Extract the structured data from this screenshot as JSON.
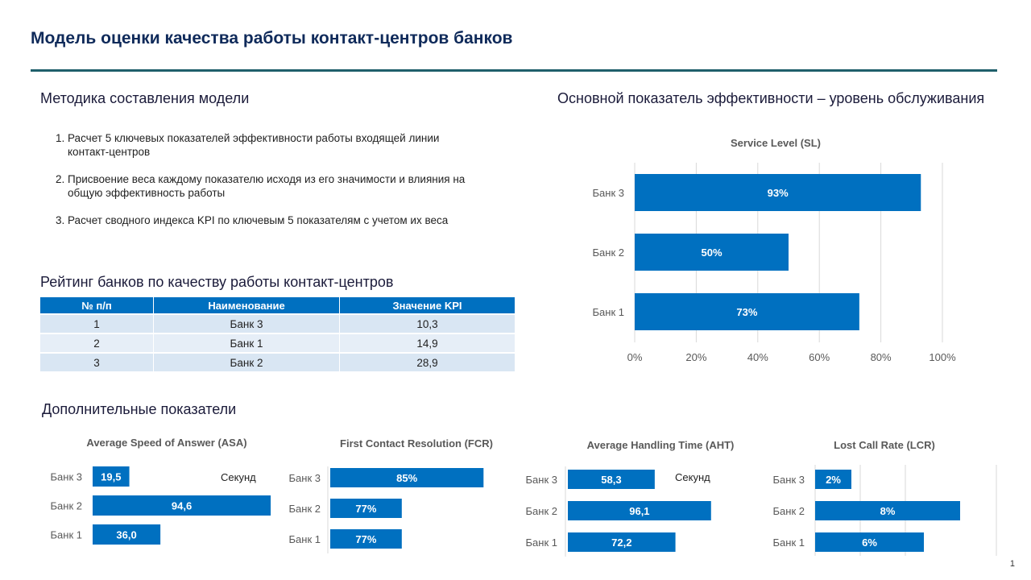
{
  "title": "Модель оценки качества работы контакт-центров банков",
  "method": {
    "title": "Методика составления модели",
    "items": [
      "Расчет 5 ключевых показателей эффективности работы входящей линии контакт-центров",
      "Присвоение веса каждому показателю исходя из его значимости и влияния на общую эффективность работы",
      "Расчет сводного индекса KPI по ключевым 5 показателям с учетом их веса"
    ]
  },
  "rating": {
    "title": "Рейтинг банков по качеству работы контакт-центров",
    "headers": [
      "№ п/п",
      "Наименование",
      "Значение KPI"
    ],
    "rows": [
      [
        "1",
        "Банк 3",
        "10,3"
      ],
      [
        "2",
        "Банк 1",
        "14,9"
      ],
      [
        "3",
        "Банк 2",
        "28,9"
      ]
    ]
  },
  "sl_section_title": "Основной показатель эффективности – уровень обслуживания",
  "extra_section_title": "Дополнительные показатели",
  "page_number": "1",
  "colors": {
    "bar": "#0070c0",
    "grid": "#d9d9d9",
    "header": "#0f2a5a"
  },
  "chart_data": [
    {
      "id": "sl",
      "type": "bar",
      "orientation": "horizontal",
      "title": "Service Level (SL)",
      "categories": [
        "Банк 3",
        "Банк 2",
        "Банк 1"
      ],
      "values": [
        93,
        50,
        73
      ],
      "labels": [
        "93%",
        "50%",
        "73%"
      ],
      "xlim": [
        0,
        100
      ],
      "xticks": [
        "0%",
        "20%",
        "40%",
        "60%",
        "80%",
        "100%"
      ],
      "grid": true
    },
    {
      "id": "asa",
      "type": "bar",
      "orientation": "horizontal",
      "title": "Average Speed of Answer (ASA)",
      "categories": [
        "Банк 3",
        "Банк 2",
        "Банк 1"
      ],
      "values": [
        19.5,
        94.6,
        36.0
      ],
      "labels": [
        "19,5",
        "94,6",
        "36,0"
      ],
      "xlim": [
        0,
        95
      ],
      "note": "Секунд",
      "grid": false
    },
    {
      "id": "fcr",
      "type": "bar",
      "orientation": "horizontal",
      "title": "First Contact Resolution (FCR)",
      "categories": [
        "Банк 3",
        "Банк 2",
        "Банк 1"
      ],
      "values": [
        85,
        77,
        77
      ],
      "labels": [
        "85%",
        "77%",
        "77%"
      ],
      "xlim": [
        70,
        86
      ],
      "grid": false
    },
    {
      "id": "aht",
      "type": "bar",
      "orientation": "horizontal",
      "title": "Average Handling Time (AHT)",
      "categories": [
        "Банк 3",
        "Банк 2",
        "Банк 1"
      ],
      "values": [
        58.3,
        96.1,
        72.2
      ],
      "labels": [
        "58,3",
        "96,1",
        "72,2"
      ],
      "xlim": [
        0,
        100
      ],
      "note": "Секунд",
      "grid": false
    },
    {
      "id": "lcr",
      "type": "bar",
      "orientation": "horizontal",
      "title": "Lost Call Rate (LCR)",
      "categories": [
        "Банк 3",
        "Банк 2",
        "Банк 1"
      ],
      "values": [
        2,
        8,
        6
      ],
      "labels": [
        "2%",
        "8%",
        "6%"
      ],
      "xlim": [
        0,
        10
      ],
      "grid": true,
      "gridlines": 3
    }
  ]
}
